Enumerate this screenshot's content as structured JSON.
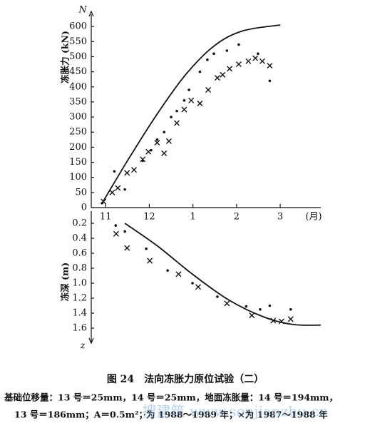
{
  "chart_data": [
    {
      "type": "scatter",
      "y_label": "冻胀力 (kN)",
      "axis_letter": "N",
      "x_label": "(月)",
      "xlim": [
        -0.33,
        4.93
      ],
      "xticks": [
        {
          "value": 0,
          "label": "11"
        },
        {
          "value": 1,
          "label": "12"
        },
        {
          "value": 2,
          "label": "1"
        },
        {
          "value": 3,
          "label": "2"
        },
        {
          "value": 4,
          "label": "3"
        }
      ],
      "ylim": [
        0,
        650
      ],
      "yticks": [
        0,
        50,
        100,
        150,
        200,
        250,
        300,
        350,
        400,
        450,
        500,
        550,
        600
      ],
      "series": [
        {
          "marker": "line",
          "color": "#111111",
          "x": [
            -0.08,
            0.52,
            1.18,
            1.83,
            2.48,
            3.13,
            4.0
          ],
          "values": [
            15,
            160,
            310,
            440,
            535,
            585,
            605
          ]
        },
        {
          "marker": "x",
          "color": "#111111",
          "x": [
            -0.05,
            0.15,
            0.28,
            0.49,
            0.65,
            0.85,
            0.98,
            1.18,
            1.34,
            1.45,
            1.63,
            1.8,
            1.96,
            2.16,
            2.35,
            2.56,
            2.68,
            2.84,
            3.05,
            3.27,
            3.43,
            3.59,
            3.76
          ],
          "values": [
            20,
            50,
            65,
            115,
            125,
            160,
            185,
            215,
            180,
            220,
            280,
            325,
            355,
            345,
            390,
            430,
            440,
            460,
            475,
            485,
            495,
            485,
            470
          ]
        },
        {
          "marker": "dot",
          "color": "#111111",
          "x": [
            -0.08,
            0.2,
            0.44,
            0.85,
            1.04,
            1.18,
            1.34,
            1.5,
            1.63,
            1.8,
            1.91,
            2.16,
            2.33,
            2.48,
            2.78,
            3.05,
            3.49,
            3.76
          ],
          "values": [
            15,
            120,
            60,
            155,
            190,
            225,
            250,
            300,
            320,
            355,
            390,
            450,
            490,
            510,
            520,
            540,
            510,
            420
          ]
        }
      ]
    },
    {
      "type": "scatter",
      "y_label": "冻深 (m)",
      "axis_letter": "z",
      "y_inverted": true,
      "xlim": [
        -0.33,
        4.93
      ],
      "ylim": [
        0,
        1.8
      ],
      "yticks": [
        0.2,
        0.4,
        0.6,
        0.8,
        {
          "value": 1,
          "label": "1.0"
        },
        1.2,
        1.4,
        1.6
      ],
      "series": [
        {
          "marker": "line",
          "color": "#111111",
          "x": [
            0.44,
            1.18,
            1.99,
            2.81,
            3.62,
            4.28,
            4.93
          ],
          "values": [
            0.2,
            0.5,
            0.88,
            1.22,
            1.45,
            1.55,
            1.56
          ]
        },
        {
          "marker": "x",
          "color": "#111111",
          "x": [
            0.24,
            0.49,
            1.01,
            1.67,
            2.12,
            2.78,
            3.35,
            3.84,
            4.03,
            4.24
          ],
          "values": [
            0.34,
            0.53,
            0.7,
            0.88,
            1.05,
            1.27,
            1.43,
            1.5,
            1.51,
            1.48
          ]
        },
        {
          "marker": "dot",
          "color": "#111111",
          "x": [
            0.23,
            0.44,
            0.93,
            1.42,
            1.99,
            2.56,
            3.22,
            3.54,
            3.76,
            4.24
          ],
          "values": [
            0.23,
            0.31,
            0.54,
            0.83,
            1.0,
            1.18,
            1.31,
            1.35,
            1.3,
            1.35
          ]
        }
      ]
    }
  ],
  "caption": "图 24　法向冻胀力原位试验（二）",
  "notes": [
    "基础位移量：13 号＝25mm，14 号＝25mm，地面冻胀量：14 号＝194mm，",
    "13 号＝186mm；A＝0.5m²；·为 1988～1989 年；×为 1987～1988 年"
  ],
  "watermark": "搜建筑 www.soujianzhu.cn"
}
